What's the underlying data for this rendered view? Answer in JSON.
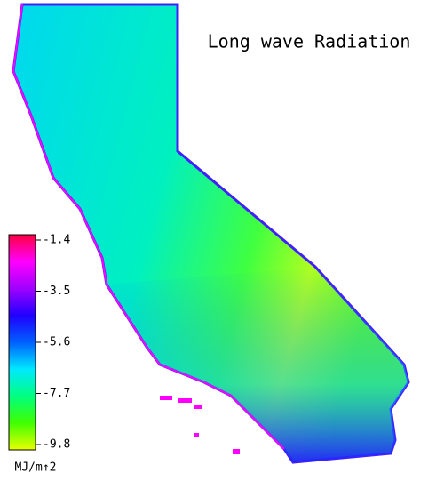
{
  "title": "Long wave Radiation",
  "colorbar": {
    "range": [
      -9.8,
      -1.4
    ],
    "ticks": [
      -1.4,
      -3.5,
      -5.6,
      -7.7,
      -9.8
    ],
    "unit": "MJ/m↑2",
    "colors": [
      "#e8ff00",
      "#40ff00",
      "#00ff80",
      "#00e8ff",
      "#0060ff",
      "#2000ff",
      "#a000ff",
      "#ff00ff",
      "#ff0040"
    ]
  }
}
